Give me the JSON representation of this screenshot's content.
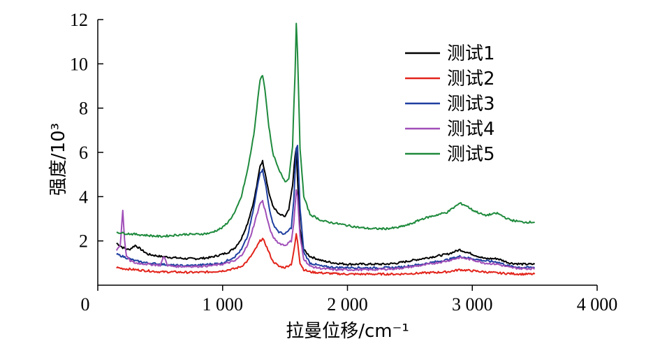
{
  "chart_data": {
    "type": "line",
    "xlabel": "拉曼位移/cm⁻¹",
    "ylabel": "强度/10³",
    "xlim": [
      0,
      4000
    ],
    "ylim": [
      0,
      12
    ],
    "x_ticks": [
      0,
      1000,
      2000,
      3000,
      4000
    ],
    "x_tick_labels": [
      "0",
      "1 000",
      "2 000",
      "3 000",
      "4 000"
    ],
    "y_ticks": [
      2,
      4,
      6,
      8,
      10,
      12
    ],
    "y_tick_labels": [
      "2",
      "4",
      "6",
      "8",
      "10",
      "12"
    ],
    "grid": false,
    "legend_position": "top-right",
    "series": [
      {
        "name": "测试1",
        "color": "#000000",
        "x": [
          150,
          200,
          250,
          300,
          400,
          500,
          600,
          700,
          800,
          900,
          1000,
          1050,
          1100,
          1150,
          1200,
          1250,
          1280,
          1300,
          1320,
          1340,
          1370,
          1400,
          1450,
          1500,
          1530,
          1560,
          1580,
          1590,
          1600,
          1620,
          1650,
          1700,
          1800,
          1900,
          2000,
          2100,
          2200,
          2300,
          2400,
          2500,
          2600,
          2700,
          2800,
          2850,
          2900,
          2950,
          3000,
          3100,
          3200,
          3300,
          3400,
          3500
        ],
        "y": [
          1.9,
          1.7,
          1.6,
          1.8,
          1.4,
          1.3,
          1.25,
          1.2,
          1.2,
          1.25,
          1.4,
          1.5,
          1.7,
          2.1,
          2.8,
          3.8,
          4.7,
          5.4,
          5.6,
          5.1,
          4.2,
          3.6,
          3.2,
          3.1,
          3.4,
          4.5,
          5.8,
          6.2,
          4.8,
          2.5,
          1.6,
          1.3,
          1.1,
          1.0,
          0.95,
          0.95,
          0.95,
          0.95,
          1.0,
          1.1,
          1.2,
          1.3,
          1.4,
          1.5,
          1.6,
          1.5,
          1.4,
          1.2,
          1.2,
          1.0,
          0.95,
          0.95
        ]
      },
      {
        "name": "测试2",
        "color": "#e2231a",
        "x": [
          150,
          200,
          300,
          400,
          500,
          600,
          700,
          800,
          900,
          1000,
          1100,
          1150,
          1200,
          1250,
          1280,
          1300,
          1320,
          1340,
          1370,
          1400,
          1450,
          1500,
          1550,
          1570,
          1590,
          1600,
          1620,
          1650,
          1700,
          1800,
          1900,
          2000,
          2200,
          2400,
          2600,
          2800,
          2900,
          3000,
          3200,
          3400,
          3500
        ],
        "y": [
          0.8,
          0.75,
          0.7,
          0.65,
          0.6,
          0.6,
          0.58,
          0.58,
          0.6,
          0.65,
          0.75,
          0.85,
          1.1,
          1.5,
          1.8,
          2.0,
          2.1,
          1.9,
          1.5,
          1.1,
          0.85,
          0.8,
          0.95,
          1.5,
          2.3,
          2.0,
          1.0,
          0.7,
          0.6,
          0.55,
          0.52,
          0.5,
          0.5,
          0.5,
          0.55,
          0.6,
          0.7,
          0.65,
          0.55,
          0.5,
          0.5
        ]
      },
      {
        "name": "测试3",
        "color": "#1f3fa0",
        "x": [
          150,
          200,
          300,
          400,
          500,
          600,
          700,
          800,
          900,
          1000,
          1100,
          1150,
          1200,
          1250,
          1280,
          1300,
          1320,
          1340,
          1370,
          1400,
          1450,
          1500,
          1550,
          1570,
          1590,
          1600,
          1620,
          1650,
          1700,
          1800,
          1900,
          2000,
          2200,
          2400,
          2600,
          2800,
          2900,
          3000,
          3100,
          3200,
          3300,
          3400,
          3500
        ],
        "y": [
          1.4,
          1.3,
          1.1,
          1.0,
          0.95,
          0.9,
          0.88,
          0.9,
          0.95,
          1.0,
          1.3,
          1.6,
          2.2,
          3.5,
          4.5,
          5.1,
          5.2,
          4.7,
          3.6,
          2.8,
          2.4,
          2.3,
          2.6,
          3.8,
          6.2,
          6.3,
          3.5,
          1.5,
          1.0,
          0.85,
          0.8,
          0.8,
          0.78,
          0.8,
          0.95,
          1.15,
          1.3,
          1.2,
          1.1,
          1.05,
          0.85,
          0.8,
          0.8
        ]
      },
      {
        "name": "测试4",
        "color": "#a04fb8",
        "x": [
          150,
          180,
          200,
          215,
          230,
          260,
          300,
          400,
          500,
          530,
          560,
          600,
          700,
          800,
          900,
          1000,
          1100,
          1150,
          1200,
          1250,
          1280,
          1300,
          1320,
          1340,
          1370,
          1400,
          1450,
          1500,
          1550,
          1570,
          1590,
          1600,
          1620,
          1650,
          1700,
          1800,
          1900,
          2000,
          2200,
          2400,
          2600,
          2800,
          2900,
          3000,
          3100,
          3200,
          3300,
          3400,
          3500
        ],
        "y": [
          1.6,
          1.8,
          3.4,
          2.0,
          1.3,
          1.1,
          1.0,
          0.95,
          0.9,
          1.3,
          0.9,
          0.85,
          0.85,
          0.85,
          0.88,
          0.95,
          1.1,
          1.35,
          1.8,
          2.7,
          3.3,
          3.7,
          3.8,
          3.4,
          2.7,
          2.2,
          1.9,
          1.8,
          2.0,
          2.8,
          4.3,
          4.0,
          2.2,
          1.2,
          0.85,
          0.75,
          0.7,
          0.7,
          0.7,
          0.75,
          0.9,
          1.1,
          1.25,
          1.15,
          1.0,
          0.95,
          0.8,
          0.75,
          0.75
        ]
      },
      {
        "name": "测试5",
        "color": "#1e8a3c",
        "x": [
          150,
          200,
          300,
          400,
          500,
          600,
          700,
          800,
          900,
          1000,
          1050,
          1100,
          1150,
          1200,
          1250,
          1280,
          1300,
          1320,
          1340,
          1370,
          1400,
          1450,
          1500,
          1530,
          1560,
          1580,
          1590,
          1600,
          1620,
          1650,
          1700,
          1800,
          1900,
          2000,
          2100,
          2200,
          2300,
          2400,
          2500,
          2600,
          2700,
          2800,
          2850,
          2900,
          2950,
          3000,
          3100,
          3200,
          3250,
          3300,
          3400,
          3500
        ],
        "y": [
          2.4,
          2.35,
          2.3,
          2.25,
          2.2,
          2.25,
          2.3,
          2.3,
          2.35,
          2.6,
          2.9,
          3.3,
          4.0,
          5.2,
          6.8,
          8.3,
          9.3,
          9.5,
          8.8,
          7.2,
          6.0,
          5.2,
          4.7,
          4.8,
          6.3,
          9.5,
          11.8,
          10.5,
          6.2,
          4.0,
          3.2,
          2.9,
          2.8,
          2.7,
          2.6,
          2.55,
          2.55,
          2.6,
          2.75,
          3.0,
          3.15,
          3.3,
          3.5,
          3.7,
          3.6,
          3.4,
          3.15,
          3.25,
          3.1,
          2.95,
          2.85,
          2.85
        ]
      }
    ]
  }
}
